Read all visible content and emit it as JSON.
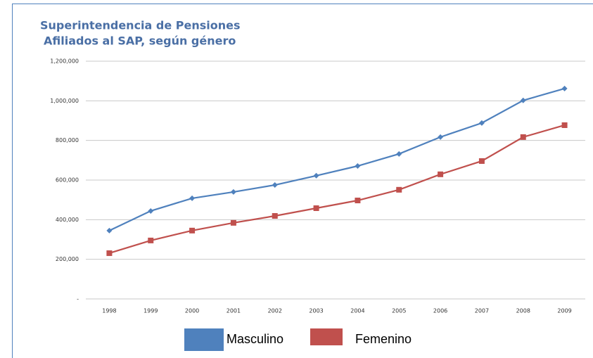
{
  "chart_data": {
    "type": "line",
    "title": "Superintendencia de Pensiones",
    "subtitle": "Afiliados al SAP, según género",
    "categories": [
      "1998",
      "1999",
      "2000",
      "2001",
      "2002",
      "2003",
      "2004",
      "2005",
      "2006",
      "2007",
      "2008",
      "2009"
    ],
    "series": [
      {
        "name": "Masculino",
        "color": "#4f81bd",
        "marker": "diamond",
        "values": [
          345000,
          444000,
          508000,
          540000,
          575000,
          622000,
          671000,
          732000,
          817000,
          888000,
          1002000,
          1062000
        ]
      },
      {
        "name": "Femenino",
        "color": "#c0504d",
        "marker": "square",
        "values": [
          231000,
          295000,
          345000,
          384000,
          419000,
          458000,
          497000,
          551000,
          629000,
          696000,
          817000,
          877000
        ]
      }
    ],
    "ylim": [
      0,
      1200000
    ],
    "yticks": [
      {
        "value": 0,
        "label": "-"
      },
      {
        "value": 200000,
        "label": "200,000"
      },
      {
        "value": 400000,
        "label": "400,000"
      },
      {
        "value": 600000,
        "label": "600,000"
      },
      {
        "value": 800000,
        "label": "800,000"
      },
      {
        "value": 1000000,
        "label": "1,000,000"
      },
      {
        "value": 1200000,
        "label": "1,200,000"
      }
    ],
    "grid": true
  }
}
